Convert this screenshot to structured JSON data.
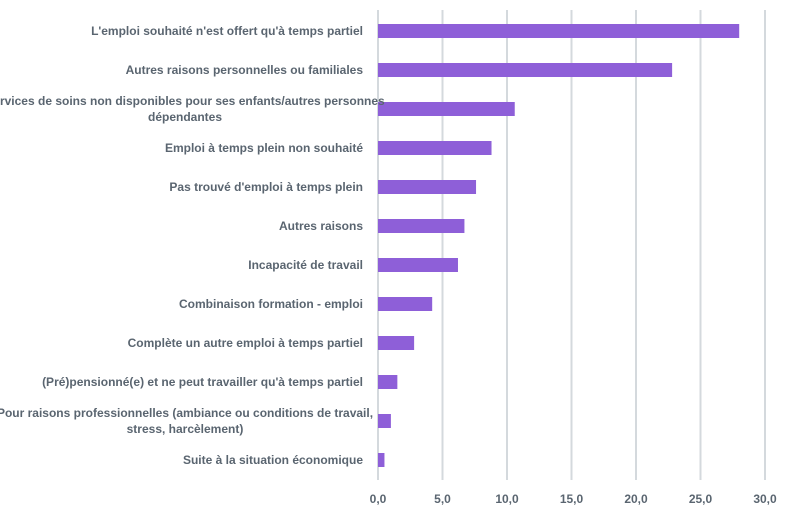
{
  "chart_data": {
    "type": "bar",
    "orientation": "horizontal",
    "categories": [
      [
        "L'emploi souhaité n'est offert qu'à temps partiel"
      ],
      [
        "Autres raisons personnelles ou familiales"
      ],
      [
        "Services de soins non disponibles pour ses enfants/autres personnes",
        "dépendantes"
      ],
      [
        "Emploi à temps plein non souhaité"
      ],
      [
        "Pas trouvé d'emploi à temps plein"
      ],
      [
        "Autres raisons"
      ],
      [
        "Incapacité de travail"
      ],
      [
        "Combinaison formation - emploi"
      ],
      [
        "Complète un autre emploi à temps partiel"
      ],
      [
        "(Pré)pensionné(e) et ne peut travailler qu'à temps partiel"
      ],
      [
        "Pour raisons professionnelles (ambiance ou conditions de travail,",
        "stress, harcèlement)"
      ],
      [
        "Suite à la situation économique"
      ]
    ],
    "values": [
      28.0,
      22.8,
      10.6,
      8.8,
      7.6,
      6.7,
      6.2,
      4.2,
      2.8,
      1.5,
      1.0,
      0.5
    ],
    "xlim": [
      0,
      30
    ],
    "xticks": [
      "0,0",
      "5,0",
      "10,0",
      "15,0",
      "20,0",
      "25,0",
      "30,0"
    ],
    "xtick_values": [
      0,
      5,
      10,
      15,
      20,
      25,
      30
    ],
    "grid": true,
    "bar_color": "#8e5fd8",
    "grid_color": "#d4d9dd",
    "text_color": "#5a6570",
    "title": "",
    "xlabel": "",
    "ylabel": ""
  }
}
